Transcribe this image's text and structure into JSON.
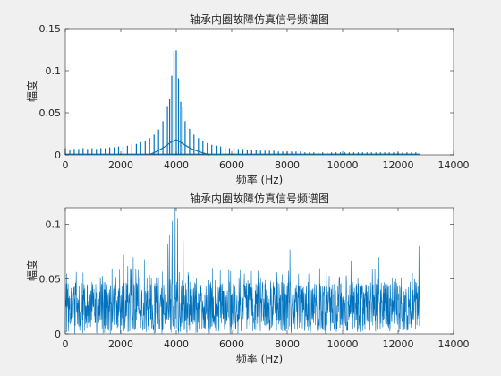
{
  "figure": {
    "background": "#f0f0f0",
    "axes_background": "#ffffff",
    "line_color": "#0072bd"
  },
  "chart_data": [
    {
      "type": "line",
      "title": "轴承内圈故障仿真信号频谱图",
      "xlabel": "频率 (Hz)",
      "ylabel": "幅度",
      "xlim": [
        0,
        14000
      ],
      "ylim": [
        0,
        0.15
      ],
      "xticks": [
        0,
        2000,
        4000,
        6000,
        8000,
        10000,
        12000,
        14000
      ],
      "yticks": [
        0,
        0.05,
        0.1,
        0.15
      ],
      "ytick_labels": [
        "0",
        "0.05",
        "0.1",
        "0.15"
      ],
      "grid": false,
      "signal_end_hz": 12800,
      "peaks": [
        {
          "x": 0,
          "y": 0.008
        },
        {
          "x": 160,
          "y": 0.006
        },
        {
          "x": 320,
          "y": 0.007
        },
        {
          "x": 480,
          "y": 0.007
        },
        {
          "x": 640,
          "y": 0.008
        },
        {
          "x": 800,
          "y": 0.007
        },
        {
          "x": 960,
          "y": 0.008
        },
        {
          "x": 1120,
          "y": 0.007
        },
        {
          "x": 1280,
          "y": 0.008
        },
        {
          "x": 1440,
          "y": 0.008
        },
        {
          "x": 1600,
          "y": 0.009
        },
        {
          "x": 1760,
          "y": 0.009
        },
        {
          "x": 1920,
          "y": 0.01
        },
        {
          "x": 2080,
          "y": 0.01
        },
        {
          "x": 2240,
          "y": 0.011
        },
        {
          "x": 2400,
          "y": 0.012
        },
        {
          "x": 2560,
          "y": 0.013
        },
        {
          "x": 2720,
          "y": 0.015
        },
        {
          "x": 2880,
          "y": 0.017
        },
        {
          "x": 3040,
          "y": 0.02
        },
        {
          "x": 3200,
          "y": 0.024
        },
        {
          "x": 3360,
          "y": 0.03
        },
        {
          "x": 3520,
          "y": 0.04
        },
        {
          "x": 3680,
          "y": 0.058
        },
        {
          "x": 3760,
          "y": 0.066
        },
        {
          "x": 3840,
          "y": 0.094
        },
        {
          "x": 3920,
          "y": 0.123
        },
        {
          "x": 4000,
          "y": 0.124
        },
        {
          "x": 4080,
          "y": 0.091
        },
        {
          "x": 4160,
          "y": 0.063
        },
        {
          "x": 4240,
          "y": 0.057
        },
        {
          "x": 4320,
          "y": 0.04
        },
        {
          "x": 4480,
          "y": 0.031
        },
        {
          "x": 4640,
          "y": 0.024
        },
        {
          "x": 4800,
          "y": 0.02
        },
        {
          "x": 4960,
          "y": 0.016
        },
        {
          "x": 5120,
          "y": 0.014
        },
        {
          "x": 5280,
          "y": 0.012
        },
        {
          "x": 5440,
          "y": 0.011
        },
        {
          "x": 5600,
          "y": 0.01
        },
        {
          "x": 5760,
          "y": 0.009
        },
        {
          "x": 5920,
          "y": 0.008
        },
        {
          "x": 6080,
          "y": 0.008
        },
        {
          "x": 6240,
          "y": 0.007
        },
        {
          "x": 6400,
          "y": 0.007
        },
        {
          "x": 6560,
          "y": 0.006
        },
        {
          "x": 6720,
          "y": 0.006
        },
        {
          "x": 6880,
          "y": 0.006
        },
        {
          "x": 7040,
          "y": 0.005
        },
        {
          "x": 7200,
          "y": 0.005
        },
        {
          "x": 7360,
          "y": 0.005
        },
        {
          "x": 7520,
          "y": 0.005
        },
        {
          "x": 7680,
          "y": 0.004
        },
        {
          "x": 7840,
          "y": 0.004
        },
        {
          "x": 8000,
          "y": 0.004
        },
        {
          "x": 8160,
          "y": 0.004
        },
        {
          "x": 8320,
          "y": 0.004
        },
        {
          "x": 8480,
          "y": 0.004
        },
        {
          "x": 8640,
          "y": 0.003
        },
        {
          "x": 8800,
          "y": 0.003
        },
        {
          "x": 8960,
          "y": 0.003
        },
        {
          "x": 9120,
          "y": 0.003
        },
        {
          "x": 9280,
          "y": 0.003
        },
        {
          "x": 9440,
          "y": 0.003
        },
        {
          "x": 9600,
          "y": 0.003
        },
        {
          "x": 9760,
          "y": 0.003
        },
        {
          "x": 9920,
          "y": 0.003
        },
        {
          "x": 10080,
          "y": 0.003
        },
        {
          "x": 10240,
          "y": 0.003
        },
        {
          "x": 10400,
          "y": 0.003
        },
        {
          "x": 10560,
          "y": 0.003
        },
        {
          "x": 10720,
          "y": 0.003
        },
        {
          "x": 10880,
          "y": 0.003
        },
        {
          "x": 11040,
          "y": 0.003
        },
        {
          "x": 11200,
          "y": 0.003
        },
        {
          "x": 11360,
          "y": 0.003
        },
        {
          "x": 11520,
          "y": 0.003
        },
        {
          "x": 11680,
          "y": 0.003
        },
        {
          "x": 11840,
          "y": 0.003
        },
        {
          "x": 12000,
          "y": 0.003
        },
        {
          "x": 12160,
          "y": 0.003
        },
        {
          "x": 12320,
          "y": 0.003
        },
        {
          "x": 12480,
          "y": 0.003
        },
        {
          "x": 12640,
          "y": 0.003
        }
      ],
      "envelope": [
        {
          "x": 3000,
          "y": 0.0
        },
        {
          "x": 3300,
          "y": 0.004
        },
        {
          "x": 3600,
          "y": 0.01
        },
        {
          "x": 3800,
          "y": 0.015
        },
        {
          "x": 4000,
          "y": 0.018
        },
        {
          "x": 4200,
          "y": 0.014
        },
        {
          "x": 4500,
          "y": 0.008
        },
        {
          "x": 4800,
          "y": 0.004
        },
        {
          "x": 5200,
          "y": 0.0
        }
      ]
    },
    {
      "type": "line",
      "title": "轴承内圈故障仿真信号频谱图",
      "xlabel": "频率 (Hz)",
      "ylabel": "幅度",
      "xlim": [
        0,
        14000
      ],
      "ylim": [
        0,
        0.115
      ],
      "xticks": [
        0,
        2000,
        4000,
        6000,
        8000,
        10000,
        12000,
        14000
      ],
      "yticks": [
        0,
        0.05,
        0.1
      ],
      "ytick_labels": [
        "0",
        "0.05",
        "0.1"
      ],
      "grid": false,
      "signal_end_hz": 12800,
      "noise_floor": {
        "mean": 0.025,
        "min": 0.0,
        "max": 0.05
      },
      "spikes": [
        {
          "x": 2100,
          "y": 0.072
        },
        {
          "x": 2250,
          "y": 0.062
        },
        {
          "x": 2450,
          "y": 0.07
        },
        {
          "x": 2700,
          "y": 0.063
        },
        {
          "x": 2850,
          "y": 0.068
        },
        {
          "x": 3700,
          "y": 0.082
        },
        {
          "x": 3750,
          "y": 0.09
        },
        {
          "x": 3850,
          "y": 0.103
        },
        {
          "x": 3960,
          "y": 0.115
        },
        {
          "x": 4050,
          "y": 0.105
        },
        {
          "x": 4250,
          "y": 0.085
        },
        {
          "x": 5300,
          "y": 0.06
        },
        {
          "x": 6300,
          "y": 0.058
        },
        {
          "x": 8100,
          "y": 0.077
        },
        {
          "x": 10300,
          "y": 0.067
        },
        {
          "x": 11300,
          "y": 0.07
        },
        {
          "x": 12750,
          "y": 0.08
        }
      ]
    }
  ]
}
